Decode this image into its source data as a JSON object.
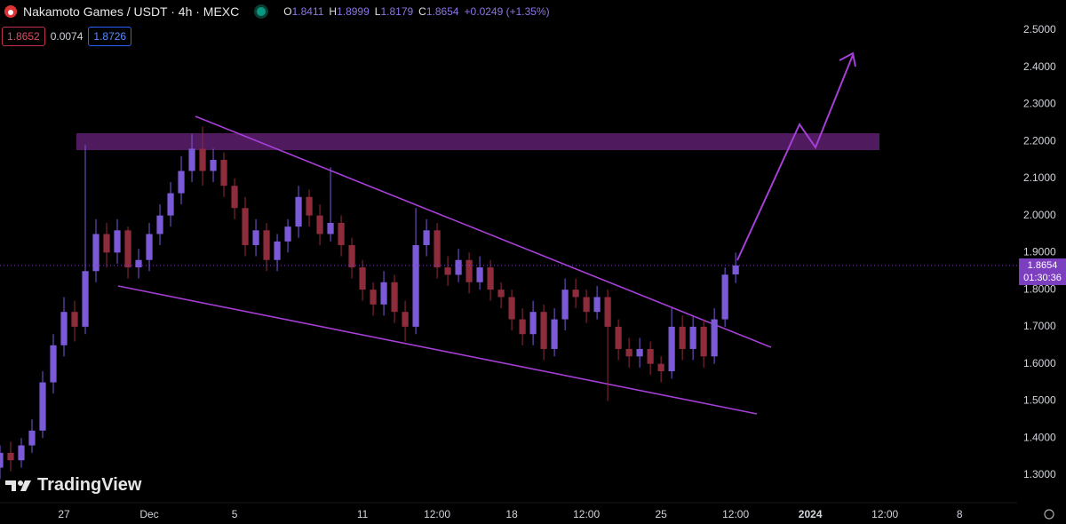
{
  "header": {
    "symbol": "Nakamoto Games / USDT · 4h · MEXC",
    "ohlc_labels": [
      "O",
      "H",
      "L",
      "C"
    ],
    "change": "+0.0249 (+1.35%)",
    "bid": "1.8652",
    "spread": "0.0074",
    "ask": "1.8726",
    "countdown": "01:30:36",
    "logo": "TradingView"
  },
  "chart_data": {
    "type": "candlestick",
    "x": [
      -3,
      -2.5,
      -2,
      -1.5,
      -1,
      -0.5,
      0,
      0.5,
      1,
      1.5,
      2,
      2.5,
      3,
      3.5,
      4,
      4.5,
      5,
      5.5,
      6,
      6.5,
      7,
      7.5,
      8,
      8.5,
      9,
      9.5,
      10,
      10.5,
      11,
      11.5,
      12,
      12.5,
      13,
      13.5,
      14,
      14.5,
      15,
      15.5,
      16,
      16.5,
      17,
      17.5,
      18,
      18.5,
      19,
      19.5,
      20,
      20.5,
      21,
      21.5,
      22,
      22.5,
      23,
      23.5,
      24,
      24.5,
      25,
      25.5,
      26,
      26.5,
      27,
      27.5,
      28,
      28.5,
      29,
      29.5,
      30,
      30.5,
      31,
      31.5
    ],
    "open": [
      1.32,
      1.36,
      1.34,
      1.38,
      1.42,
      1.55,
      1.65,
      1.74,
      1.7,
      1.85,
      1.95,
      1.9,
      1.96,
      1.86,
      1.88,
      1.95,
      2.0,
      2.06,
      2.12,
      2.18,
      2.12,
      2.15,
      2.08,
      2.02,
      1.92,
      1.96,
      1.88,
      1.93,
      1.97,
      2.05,
      2.0,
      1.95,
      1.98,
      1.92,
      1.86,
      1.8,
      1.76,
      1.82,
      1.74,
      1.7,
      1.92,
      1.96,
      1.86,
      1.84,
      1.88,
      1.82,
      1.86,
      1.8,
      1.78,
      1.72,
      1.68,
      1.74,
      1.64,
      1.72,
      1.8,
      1.78,
      1.74,
      1.78,
      1.7,
      1.64,
      1.62,
      1.64,
      1.6,
      1.58,
      1.7,
      1.64,
      1.7,
      1.62,
      1.72,
      1.8411
    ],
    "high": [
      1.38,
      1.39,
      1.4,
      1.45,
      1.58,
      1.68,
      1.78,
      1.77,
      2.19,
      1.99,
      1.98,
      1.99,
      1.97,
      1.91,
      1.98,
      2.03,
      2.09,
      2.16,
      2.22,
      2.24,
      2.18,
      2.17,
      2.1,
      2.05,
      1.99,
      1.98,
      1.95,
      1.99,
      2.08,
      2.07,
      2.03,
      2.13,
      2.0,
      1.94,
      1.88,
      1.82,
      1.85,
      1.84,
      1.77,
      2.02,
      1.99,
      1.98,
      1.89,
      1.91,
      1.9,
      1.89,
      1.88,
      1.82,
      1.8,
      1.75,
      1.77,
      1.76,
      1.75,
      1.83,
      1.83,
      1.8,
      1.81,
      1.8,
      1.72,
      1.67,
      1.67,
      1.66,
      1.62,
      1.75,
      1.73,
      1.73,
      1.72,
      1.75,
      1.86,
      1.8999
    ],
    "low": [
      1.29,
      1.31,
      1.32,
      1.36,
      1.4,
      1.52,
      1.62,
      1.66,
      1.68,
      1.82,
      1.86,
      1.87,
      1.83,
      1.83,
      1.85,
      1.92,
      1.97,
      2.03,
      2.09,
      2.08,
      2.09,
      2.05,
      1.99,
      1.89,
      1.89,
      1.85,
      1.85,
      1.9,
      1.94,
      1.97,
      1.92,
      1.93,
      1.89,
      1.83,
      1.77,
      1.73,
      1.73,
      1.71,
      1.66,
      1.68,
      1.89,
      1.83,
      1.81,
      1.82,
      1.79,
      1.8,
      1.77,
      1.75,
      1.69,
      1.65,
      1.65,
      1.61,
      1.62,
      1.69,
      1.75,
      1.71,
      1.72,
      1.5,
      1.61,
      1.59,
      1.59,
      1.57,
      1.55,
      1.56,
      1.61,
      1.61,
      1.59,
      1.6,
      1.7,
      1.8179
    ],
    "close": [
      1.36,
      1.34,
      1.38,
      1.42,
      1.55,
      1.65,
      1.74,
      1.7,
      1.85,
      1.95,
      1.9,
      1.96,
      1.86,
      1.88,
      1.95,
      2.0,
      2.06,
      2.12,
      2.18,
      2.12,
      2.15,
      2.08,
      2.02,
      1.92,
      1.96,
      1.88,
      1.93,
      1.97,
      2.05,
      2.0,
      1.95,
      1.98,
      1.92,
      1.86,
      1.8,
      1.76,
      1.82,
      1.74,
      1.7,
      1.92,
      1.96,
      1.86,
      1.84,
      1.88,
      1.82,
      1.86,
      1.8,
      1.78,
      1.72,
      1.68,
      1.74,
      1.64,
      1.72,
      1.8,
      1.78,
      1.74,
      1.78,
      1.7,
      1.64,
      1.62,
      1.64,
      1.6,
      1.58,
      1.7,
      1.64,
      1.7,
      1.62,
      1.72,
      1.8405,
      1.8654
    ],
    "up_color": "#7a5ad6",
    "down_color": "#8e2c3c",
    "xlim": [
      -3,
      44.7
    ],
    "xticks": [
      {
        "value": 0,
        "label": "27"
      },
      {
        "value": 4,
        "label": "Dec"
      },
      {
        "value": 8,
        "label": "5"
      },
      {
        "value": 14,
        "label": "11"
      },
      {
        "value": 17.5,
        "label": "12:00"
      },
      {
        "value": 21,
        "label": "18"
      },
      {
        "value": 24.5,
        "label": "12:00"
      },
      {
        "value": 28,
        "label": "25"
      },
      {
        "value": 31.5,
        "label": "12:00"
      },
      {
        "value": 35,
        "label": "2024"
      },
      {
        "value": 38.5,
        "label": "12:00"
      },
      {
        "value": 42,
        "label": "8"
      }
    ],
    "ylim": [
      1.228,
      2.581
    ],
    "yticks": [
      {
        "value": 1.3,
        "label": "1.3000"
      },
      {
        "value": 1.4,
        "label": "1.4000"
      },
      {
        "value": 1.5,
        "label": "1.5000"
      },
      {
        "value": 1.6,
        "label": "1.6000"
      },
      {
        "value": 1.7,
        "label": "1.7000"
      },
      {
        "value": 1.8,
        "label": "1.8000"
      },
      {
        "value": 1.9,
        "label": "1.9000"
      },
      {
        "value": 2.0,
        "label": "2.0000"
      },
      {
        "value": 2.1,
        "label": "2.1000"
      },
      {
        "value": 2.2,
        "label": "2.2000"
      },
      {
        "value": 2.3,
        "label": "2.3000"
      },
      {
        "value": 2.4,
        "label": "2.4000"
      },
      {
        "value": 2.5,
        "label": "2.5000"
      }
    ],
    "grid": false
  }
}
